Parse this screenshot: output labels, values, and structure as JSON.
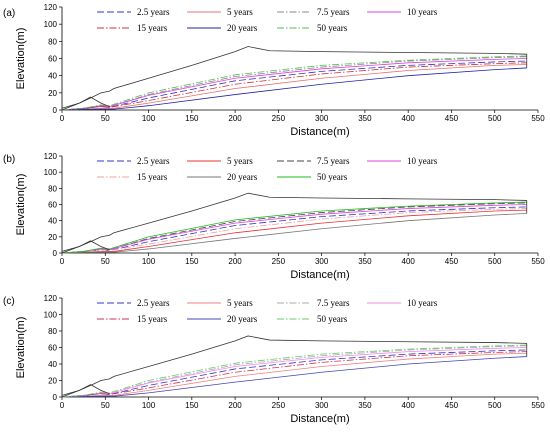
{
  "chart_data": [
    {
      "type": "line",
      "panel": "(a)",
      "xlabel": "Distance(m)",
      "ylabel": "Elevation(m)",
      "xlim": [
        0,
        550
      ],
      "ylim": [
        0,
        120
      ],
      "xticks": [
        "0",
        "50",
        "100",
        "150",
        "200",
        "250",
        "300",
        "350",
        "400",
        "450",
        "500",
        "550"
      ],
      "yticks": [
        "0",
        "20",
        "40",
        "60",
        "80",
        "100",
        "120"
      ],
      "grid": false,
      "legend_position": "top",
      "series": [
        {
          "name": "2.5 years",
          "color": "#3333cc",
          "dash": "dash",
          "x": [
            0,
            25,
            45,
            55,
            100,
            200,
            300,
            400,
            500,
            537
          ],
          "y": [
            0,
            2,
            4,
            3,
            14,
            34,
            45,
            52,
            56,
            57
          ]
        },
        {
          "name": "5 years",
          "color": "#e87070",
          "dash": "solid",
          "x": [
            0,
            25,
            50,
            60,
            100,
            200,
            300,
            400,
            500,
            537
          ],
          "y": [
            0,
            1,
            2,
            2,
            8,
            25,
            37,
            46,
            52,
            53
          ]
        },
        {
          "name": "7.5 years",
          "color": "#888888",
          "dash": "dashdot",
          "x": [
            0,
            25,
            45,
            55,
            100,
            200,
            300,
            400,
            500,
            537
          ],
          "y": [
            0,
            2,
            5,
            4,
            18,
            39,
            50,
            57,
            61,
            62
          ]
        },
        {
          "name": "10 years",
          "color": "#dd44dd",
          "dash": "solid",
          "x": [
            0,
            25,
            45,
            55,
            100,
            200,
            300,
            400,
            500,
            537
          ],
          "y": [
            0,
            2,
            5,
            4,
            17,
            37,
            48,
            55,
            59,
            60
          ]
        },
        {
          "name": "15 years",
          "color": "#cc3333",
          "dash": "dashdot",
          "x": [
            0,
            25,
            45,
            55,
            100,
            200,
            300,
            400,
            500,
            537
          ],
          "y": [
            0,
            2,
            4,
            3,
            11,
            30,
            42,
            50,
            54,
            55
          ]
        },
        {
          "name": "20 years",
          "color": "#2222aa",
          "dash": "solid",
          "x": [
            0,
            25,
            50,
            60,
            100,
            200,
            300,
            400,
            500,
            537
          ],
          "y": [
            0,
            1,
            1,
            1,
            5,
            18,
            30,
            40,
            47,
            49
          ]
        },
        {
          "name": "50 years",
          "color": "#55bb55",
          "dash": "dashdot",
          "x": [
            0,
            25,
            45,
            55,
            100,
            200,
            300,
            400,
            500,
            537
          ],
          "y": [
            0,
            2,
            6,
            5,
            20,
            41,
            52,
            58,
            62,
            63
          ]
        },
        {
          "name": "",
          "color": "#333333",
          "dash": "solid",
          "x": [
            0,
            20,
            35,
            45,
            55,
            60,
            100,
            150,
            200,
            215,
            240,
            300,
            400,
            500,
            537
          ],
          "y": [
            0,
            8,
            15,
            20,
            22,
            25,
            37,
            52,
            68,
            74,
            69,
            68,
            67,
            66,
            65
          ]
        },
        {
          "name": "",
          "color": "#333333",
          "dash": "solid",
          "x": [
            0,
            20,
            33,
            45,
            55
          ],
          "y": [
            2,
            8,
            15,
            8,
            4
          ]
        },
        {
          "name": "",
          "color": "#333333",
          "dash": "solid",
          "x": [
            537,
            537
          ],
          "y": [
            49,
            65
          ]
        }
      ]
    },
    {
      "type": "line",
      "panel": "(b)",
      "xlabel": "Distance(m)",
      "ylabel": "Elevation(m)",
      "xlim": [
        0,
        550
      ],
      "ylim": [
        0,
        120
      ],
      "xticks": [
        "0",
        "50",
        "100",
        "150",
        "200",
        "250",
        "300",
        "350",
        "400",
        "450",
        "500",
        "550"
      ],
      "yticks": [
        "0",
        "20",
        "40",
        "60",
        "80",
        "100",
        "120"
      ],
      "grid": false,
      "legend_position": "top",
      "series": [
        {
          "name": "2.5 years",
          "color": "#3333cc",
          "dash": "dash",
          "x": [
            0,
            25,
            45,
            55,
            100,
            200,
            300,
            400,
            500,
            537
          ],
          "y": [
            0,
            2,
            4,
            3,
            14,
            34,
            45,
            52,
            56,
            57
          ]
        },
        {
          "name": "5 years",
          "color": "#e83030",
          "dash": "solid",
          "x": [
            0,
            25,
            50,
            60,
            100,
            200,
            300,
            400,
            500,
            537
          ],
          "y": [
            0,
            1,
            2,
            2,
            8,
            25,
            37,
            46,
            52,
            53
          ]
        },
        {
          "name": "7.5 years",
          "color": "#444444",
          "dash": "dash",
          "x": [
            0,
            25,
            45,
            55,
            100,
            200,
            300,
            400,
            500,
            537
          ],
          "y": [
            0,
            2,
            5,
            4,
            18,
            39,
            50,
            57,
            61,
            62
          ]
        },
        {
          "name": "10 years",
          "color": "#dd44dd",
          "dash": "solid",
          "x": [
            0,
            25,
            45,
            55,
            100,
            200,
            300,
            400,
            500,
            537
          ],
          "y": [
            0,
            2,
            5,
            4,
            17,
            37,
            48,
            55,
            59,
            60
          ]
        },
        {
          "name": "15 years",
          "color": "#f0a0a0",
          "dash": "dashdot",
          "x": [
            0,
            25,
            45,
            55,
            100,
            200,
            300,
            400,
            500,
            537
          ],
          "y": [
            0,
            2,
            4,
            3,
            11,
            30,
            42,
            50,
            54,
            55
          ]
        },
        {
          "name": "20 years",
          "color": "#777777",
          "dash": "solid",
          "x": [
            0,
            25,
            50,
            60,
            100,
            200,
            300,
            400,
            500,
            537
          ],
          "y": [
            0,
            1,
            1,
            1,
            5,
            18,
            30,
            40,
            47,
            49
          ]
        },
        {
          "name": "50 years",
          "color": "#22bb22",
          "dash": "solid",
          "x": [
            0,
            25,
            45,
            55,
            100,
            200,
            300,
            400,
            500,
            537
          ],
          "y": [
            0,
            2,
            6,
            5,
            20,
            41,
            52,
            58,
            62,
            63
          ]
        },
        {
          "name": "",
          "color": "#333333",
          "dash": "solid",
          "x": [
            0,
            20,
            35,
            45,
            55,
            60,
            100,
            150,
            200,
            215,
            240,
            300,
            400,
            500,
            537
          ],
          "y": [
            0,
            8,
            15,
            20,
            22,
            25,
            37,
            52,
            68,
            74,
            69,
            68,
            67,
            66,
            65
          ]
        },
        {
          "name": "",
          "color": "#333333",
          "dash": "solid",
          "x": [
            0,
            20,
            33,
            45,
            55
          ],
          "y": [
            2,
            8,
            15,
            8,
            4
          ]
        },
        {
          "name": "",
          "color": "#333333",
          "dash": "solid",
          "x": [
            537,
            537
          ],
          "y": [
            49,
            65
          ]
        }
      ]
    },
    {
      "type": "line",
      "panel": "(c)",
      "xlabel": "Distance(m)",
      "ylabel": "Elevation(m)",
      "xlim": [
        0,
        550
      ],
      "ylim": [
        0,
        120
      ],
      "xticks": [
        "0",
        "50",
        "100",
        "150",
        "200",
        "250",
        "300",
        "350",
        "400",
        "450",
        "500",
        "550"
      ],
      "yticks": [
        "0",
        "20",
        "40",
        "60",
        "80",
        "100",
        "120"
      ],
      "grid": false,
      "legend_position": "top",
      "series": [
        {
          "name": "2.5 years",
          "color": "#3333cc",
          "dash": "dash",
          "x": [
            0,
            25,
            45,
            55,
            100,
            200,
            300,
            400,
            500,
            537
          ],
          "y": [
            0,
            2,
            4,
            3,
            14,
            34,
            45,
            52,
            56,
            57
          ]
        },
        {
          "name": "5 years",
          "color": "#f08080",
          "dash": "solid",
          "x": [
            0,
            25,
            50,
            60,
            100,
            200,
            300,
            400,
            500,
            537
          ],
          "y": [
            0,
            1,
            2,
            2,
            8,
            25,
            37,
            46,
            52,
            53
          ]
        },
        {
          "name": "7.5 years",
          "color": "#aaaaaa",
          "dash": "dashdot",
          "x": [
            0,
            25,
            45,
            55,
            100,
            200,
            300,
            400,
            500,
            537
          ],
          "y": [
            0,
            2,
            5,
            4,
            18,
            39,
            50,
            57,
            61,
            62
          ]
        },
        {
          "name": "10 years",
          "color": "#ee88ee",
          "dash": "solid",
          "x": [
            0,
            25,
            45,
            55,
            100,
            200,
            300,
            400,
            500,
            537
          ],
          "y": [
            0,
            2,
            5,
            4,
            17,
            37,
            48,
            55,
            59,
            60
          ]
        },
        {
          "name": "15 years",
          "color": "#cc3355",
          "dash": "dashdot",
          "x": [
            0,
            25,
            45,
            55,
            100,
            200,
            300,
            400,
            500,
            537
          ],
          "y": [
            0,
            2,
            4,
            3,
            11,
            30,
            42,
            50,
            54,
            55
          ]
        },
        {
          "name": "20 years",
          "color": "#4444bb",
          "dash": "solid",
          "x": [
            0,
            25,
            50,
            60,
            100,
            200,
            300,
            400,
            500,
            537
          ],
          "y": [
            0,
            1,
            1,
            1,
            5,
            18,
            30,
            40,
            47,
            49
          ]
        },
        {
          "name": "50 years",
          "color": "#66cc66",
          "dash": "dashdot",
          "x": [
            0,
            25,
            45,
            55,
            100,
            200,
            300,
            400,
            500,
            537
          ],
          "y": [
            0,
            2,
            6,
            5,
            20,
            41,
            52,
            58,
            62,
            63
          ]
        },
        {
          "name": "",
          "color": "#333333",
          "dash": "solid",
          "x": [
            0,
            20,
            35,
            45,
            55,
            60,
            100,
            150,
            200,
            215,
            240,
            300,
            400,
            500,
            537
          ],
          "y": [
            0,
            8,
            15,
            20,
            22,
            25,
            37,
            52,
            68,
            74,
            69,
            68,
            67,
            66,
            65
          ]
        },
        {
          "name": "",
          "color": "#333333",
          "dash": "solid",
          "x": [
            0,
            20,
            33,
            45,
            55
          ],
          "y": [
            2,
            8,
            15,
            8,
            4
          ]
        },
        {
          "name": "",
          "color": "#333333",
          "dash": "solid",
          "x": [
            537,
            537
          ],
          "y": [
            49,
            65
          ]
        }
      ]
    }
  ]
}
